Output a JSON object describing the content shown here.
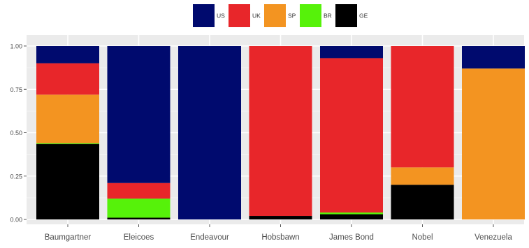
{
  "chart_data": {
    "type": "bar",
    "stacked": true,
    "legend_position": "top",
    "grid": true,
    "panel_background": "#ebebeb",
    "title": "",
    "xlabel": "",
    "ylabel": "",
    "ylim": [
      0,
      1
    ],
    "yticks": [
      "0.00",
      "0.25",
      "0.50",
      "0.75",
      "1.00"
    ],
    "ytick_values": [
      0,
      0.25,
      0.5,
      0.75,
      1.0
    ],
    "categories": [
      "Baumgartner",
      "Eleicoes",
      "Endeavour",
      "Hobsbawn",
      "James Bond",
      "Nobel",
      "Venezuela"
    ],
    "series": [
      {
        "name": "US",
        "color": "#000a6e",
        "values": [
          0.1,
          0.79,
          1.0,
          0.0,
          0.07,
          0.0,
          0.13
        ]
      },
      {
        "name": "UK",
        "color": "#e8262a",
        "values": [
          0.18,
          0.09,
          0.0,
          0.98,
          0.89,
          0.7,
          0.0
        ]
      },
      {
        "name": "SP",
        "color": "#f39421",
        "values": [
          0.28,
          0.0,
          0.0,
          0.0,
          0.0,
          0.1,
          0.87
        ]
      },
      {
        "name": "BR",
        "color": "#56f20a",
        "values": [
          0.005,
          0.11,
          0.0,
          0.0,
          0.01,
          0.0,
          0.0
        ]
      },
      {
        "name": "GE",
        "color": "#000000",
        "values": [
          0.435,
          0.01,
          0.0,
          0.02,
          0.03,
          0.2,
          0.0
        ]
      }
    ]
  }
}
